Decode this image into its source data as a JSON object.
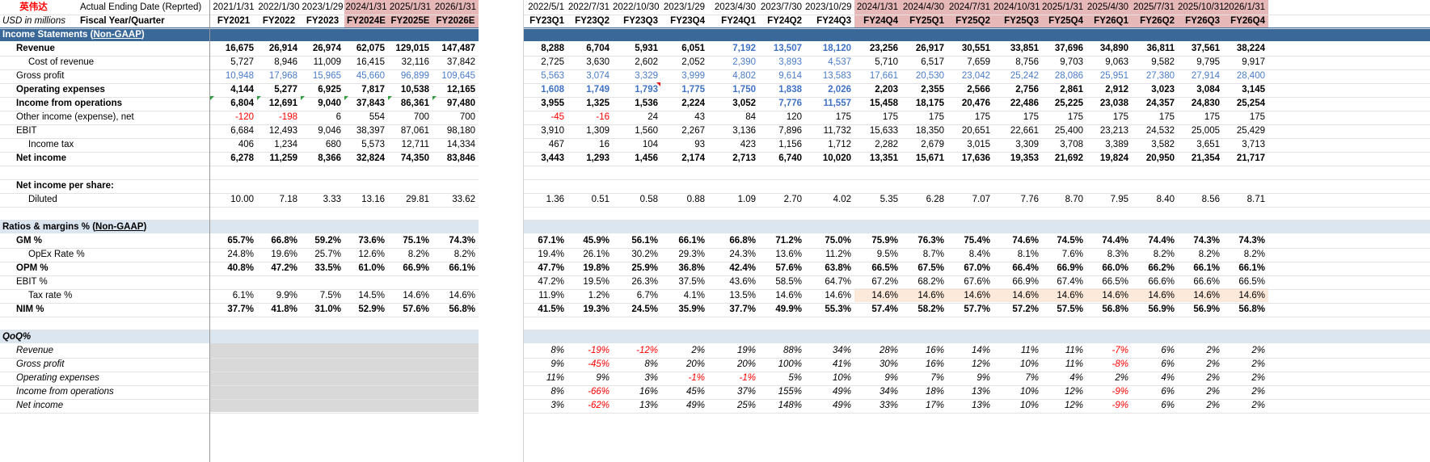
{
  "header": {
    "company": "英伟达",
    "currency_note": "USD in millions",
    "ending_label": "Actual Ending Date (Reprted)",
    "fiscal_label": "Fiscal Year/Quarter"
  },
  "annual": {
    "dates": [
      "2021/1/31",
      "2022/1/30",
      "2023/1/29",
      "2024/1/31",
      "2025/1/31",
      "2026/1/31"
    ],
    "periods": [
      "FY2021",
      "FY2022",
      "FY2023",
      "FY2024E",
      "FY2025E",
      "FY2026E"
    ]
  },
  "quarterly": {
    "dates": [
      "2022/5/1",
      "2022/7/31",
      "2022/10/30",
      "2023/1/29",
      "2023/4/30",
      "2023/7/30",
      "2023/10/29",
      "2024/1/31",
      "2024/4/30",
      "2024/7/31",
      "2024/10/31",
      "2025/1/31",
      "2025/4/30",
      "2025/7/31",
      "2025/10/31",
      "2026/1/31"
    ],
    "periods": [
      "FY23Q1",
      "FY23Q2",
      "FY23Q3",
      "FY23Q4",
      "FY24Q1",
      "FY24Q2",
      "FY24Q3",
      "FY24Q4",
      "FY25Q1",
      "FY25Q2",
      "FY25Q3",
      "FY25Q4",
      "FY26Q1",
      "FY26Q2",
      "FY26Q3",
      "FY26Q4"
    ]
  },
  "sections": {
    "income_title": "Income Statements (",
    "income_link": "Non-GAAP",
    "income_close": ")",
    "ratios_title": "Ratios & margins % (",
    "ratios_link": "Non-GAAP",
    "ratios_close": ")",
    "qoq_title": "QoQ%"
  },
  "income": [
    {
      "label": "Revenue",
      "annual": [
        "16,675",
        "26,914",
        "26,974",
        "62,075",
        "129,015",
        "147,487"
      ],
      "quarterly": [
        "8,288",
        "6,704",
        "5,931",
        "6,051",
        "7,192",
        "13,507",
        "18,120",
        "23,256",
        "26,917",
        "30,551",
        "33,851",
        "37,696",
        "34,890",
        "36,811",
        "37,561",
        "38,224"
      ]
    },
    {
      "label": "Cost of revenue",
      "annual": [
        "5,727",
        "8,946",
        "11,009",
        "16,415",
        "32,116",
        "37,842"
      ],
      "quarterly": [
        "2,725",
        "3,630",
        "2,602",
        "2,052",
        "2,390",
        "3,893",
        "4,537",
        "5,710",
        "6,517",
        "7,659",
        "8,756",
        "9,703",
        "9,063",
        "9,582",
        "9,795",
        "9,917"
      ]
    },
    {
      "label": "Gross profit",
      "annual": [
        "10,948",
        "17,968",
        "15,965",
        "45,660",
        "96,899",
        "109,645"
      ],
      "quarterly": [
        "5,563",
        "3,074",
        "3,329",
        "3,999",
        "4,802",
        "9,614",
        "13,583",
        "17,661",
        "20,530",
        "23,042",
        "25,242",
        "28,086",
        "25,951",
        "27,380",
        "27,914",
        "28,400"
      ]
    },
    {
      "label": "Operating expenses",
      "annual": [
        "4,144",
        "5,277",
        "6,925",
        "7,817",
        "10,538",
        "12,165"
      ],
      "quarterly": [
        "1,608",
        "1,749",
        "1,793",
        "1,775",
        "1,750",
        "1,838",
        "2,026",
        "2,203",
        "2,355",
        "2,566",
        "2,756",
        "2,861",
        "2,912",
        "3,023",
        "3,084",
        "3,145"
      ]
    },
    {
      "label": "Income from operations",
      "annual": [
        "6,804",
        "12,691",
        "9,040",
        "37,843",
        "86,361",
        "97,480"
      ],
      "quarterly": [
        "3,955",
        "1,325",
        "1,536",
        "2,224",
        "3,052",
        "7,776",
        "11,557",
        "15,458",
        "18,175",
        "20,476",
        "22,486",
        "25,225",
        "23,038",
        "24,357",
        "24,830",
        "25,254"
      ]
    },
    {
      "label": "Other income (expense), net",
      "annual": [
        "-120",
        "-198",
        "6",
        "554",
        "700",
        "700"
      ],
      "quarterly": [
        "-45",
        "-16",
        "24",
        "43",
        "84",
        "120",
        "175",
        "175",
        "175",
        "175",
        "175",
        "175",
        "175",
        "175",
        "175",
        "175"
      ]
    },
    {
      "label": "EBIT",
      "annual": [
        "6,684",
        "12,493",
        "9,046",
        "38,397",
        "87,061",
        "98,180"
      ],
      "quarterly": [
        "3,910",
        "1,309",
        "1,560",
        "2,267",
        "3,136",
        "7,896",
        "11,732",
        "15,633",
        "18,350",
        "20,651",
        "22,661",
        "25,400",
        "23,213",
        "24,532",
        "25,005",
        "25,429"
      ]
    },
    {
      "label": "Income tax",
      "annual": [
        "406",
        "1,234",
        "680",
        "5,573",
        "12,711",
        "14,334"
      ],
      "quarterly": [
        "467",
        "16",
        "104",
        "93",
        "423",
        "1,156",
        "1,712",
        "2,282",
        "2,679",
        "3,015",
        "3,309",
        "3,708",
        "3,389",
        "3,582",
        "3,651",
        "3,713"
      ]
    },
    {
      "label": "Net income",
      "annual": [
        "6,278",
        "11,259",
        "8,366",
        "32,824",
        "74,350",
        "83,846"
      ],
      "quarterly": [
        "3,443",
        "1,293",
        "1,456",
        "2,174",
        "2,713",
        "6,740",
        "10,020",
        "13,351",
        "15,671",
        "17,636",
        "19,353",
        "21,692",
        "19,824",
        "20,950",
        "21,354",
        "21,717"
      ]
    }
  ],
  "eps": {
    "title": "Net income per share:",
    "label": "Diluted",
    "annual": [
      "10.00",
      "7.18",
      "3.33",
      "13.16",
      "29.81",
      "33.62"
    ],
    "quarterly": [
      "1.36",
      "0.51",
      "0.58",
      "0.88",
      "1.09",
      "2.70",
      "4.02",
      "5.35",
      "6.28",
      "7.07",
      "7.76",
      "8.70",
      "7.95",
      "8.40",
      "8.56",
      "8.71"
    ]
  },
  "ratios": [
    {
      "label": "GM %",
      "annual": [
        "65.7%",
        "66.8%",
        "59.2%",
        "73.6%",
        "75.1%",
        "74.3%"
      ],
      "quarterly": [
        "67.1%",
        "45.9%",
        "56.1%",
        "66.1%",
        "66.8%",
        "71.2%",
        "75.0%",
        "75.9%",
        "76.3%",
        "75.4%",
        "74.6%",
        "74.5%",
        "74.4%",
        "74.4%",
        "74.3%",
        "74.3%"
      ]
    },
    {
      "label": "OpEx Rate %",
      "annual": [
        "24.8%",
        "19.6%",
        "25.7%",
        "12.6%",
        "8.2%",
        "8.2%"
      ],
      "quarterly": [
        "19.4%",
        "26.1%",
        "30.2%",
        "29.3%",
        "24.3%",
        "13.6%",
        "11.2%",
        "9.5%",
        "8.7%",
        "8.4%",
        "8.1%",
        "7.6%",
        "8.3%",
        "8.2%",
        "8.2%",
        "8.2%"
      ]
    },
    {
      "label": "OPM %",
      "annual": [
        "40.8%",
        "47.2%",
        "33.5%",
        "61.0%",
        "66.9%",
        "66.1%"
      ],
      "quarterly": [
        "47.7%",
        "19.8%",
        "25.9%",
        "36.8%",
        "42.4%",
        "57.6%",
        "63.8%",
        "66.5%",
        "67.5%",
        "67.0%",
        "66.4%",
        "66.9%",
        "66.0%",
        "66.2%",
        "66.1%",
        "66.1%"
      ]
    },
    {
      "label": "EBIT %",
      "annual": [
        "",
        "",
        "",
        "",
        "",
        ""
      ],
      "quarterly": [
        "47.2%",
        "19.5%",
        "26.3%",
        "37.5%",
        "43.6%",
        "58.5%",
        "64.7%",
        "67.2%",
        "68.2%",
        "67.6%",
        "66.9%",
        "67.4%",
        "66.5%",
        "66.6%",
        "66.6%",
        "66.5%"
      ]
    },
    {
      "label": "Tax rate %",
      "annual": [
        "6.1%",
        "9.9%",
        "7.5%",
        "14.5%",
        "14.6%",
        "14.6%"
      ],
      "quarterly": [
        "11.9%",
        "1.2%",
        "6.7%",
        "4.1%",
        "13.5%",
        "14.6%",
        "14.6%",
        "14.6%",
        "14.6%",
        "14.6%",
        "14.6%",
        "14.6%",
        "14.6%",
        "14.6%",
        "14.6%",
        "14.6%"
      ]
    },
    {
      "label": "NIM %",
      "annual": [
        "37.7%",
        "41.8%",
        "31.0%",
        "52.9%",
        "57.6%",
        "56.8%"
      ],
      "quarterly": [
        "41.5%",
        "19.3%",
        "24.5%",
        "35.9%",
        "37.7%",
        "49.9%",
        "55.3%",
        "57.4%",
        "58.2%",
        "57.7%",
        "57.2%",
        "57.5%",
        "56.8%",
        "56.9%",
        "56.9%",
        "56.8%"
      ]
    }
  ],
  "qoq": [
    {
      "label": "Revenue",
      "quarterly": [
        "8%",
        "-19%",
        "-12%",
        "2%",
        "19%",
        "88%",
        "34%",
        "28%",
        "16%",
        "14%",
        "11%",
        "11%",
        "-7%",
        "6%",
        "2%",
        "2%"
      ]
    },
    {
      "label": "Gross profit",
      "quarterly": [
        "9%",
        "-45%",
        "8%",
        "20%",
        "20%",
        "100%",
        "41%",
        "30%",
        "16%",
        "12%",
        "10%",
        "11%",
        "-8%",
        "6%",
        "2%",
        "2%"
      ]
    },
    {
      "label": "Operating expenses",
      "quarterly": [
        "11%",
        "9%",
        "3%",
        "-1%",
        "-1%",
        "5%",
        "10%",
        "9%",
        "7%",
        "9%",
        "7%",
        "4%",
        "2%",
        "4%",
        "2%",
        "2%"
      ]
    },
    {
      "label": "Income from operations",
      "quarterly": [
        "8%",
        "-66%",
        "16%",
        "45%",
        "37%",
        "155%",
        "49%",
        "34%",
        "18%",
        "13%",
        "10%",
        "12%",
        "-9%",
        "6%",
        "2%",
        "2%"
      ]
    },
    {
      "label": "Net income",
      "quarterly": [
        "3%",
        "-62%",
        "13%",
        "49%",
        "25%",
        "148%",
        "49%",
        "33%",
        "17%",
        "13%",
        "10%",
        "12%",
        "-9%",
        "6%",
        "2%",
        "2%"
      ]
    }
  ],
  "colors": {
    "section_dark": "#3a6898",
    "section_light": "#dce6f1",
    "estimate_header": "#e6b8b7",
    "tax_estimate": "#fde9d9",
    "negative": "#ff0000",
    "link_blue": "#4a7cc9"
  }
}
